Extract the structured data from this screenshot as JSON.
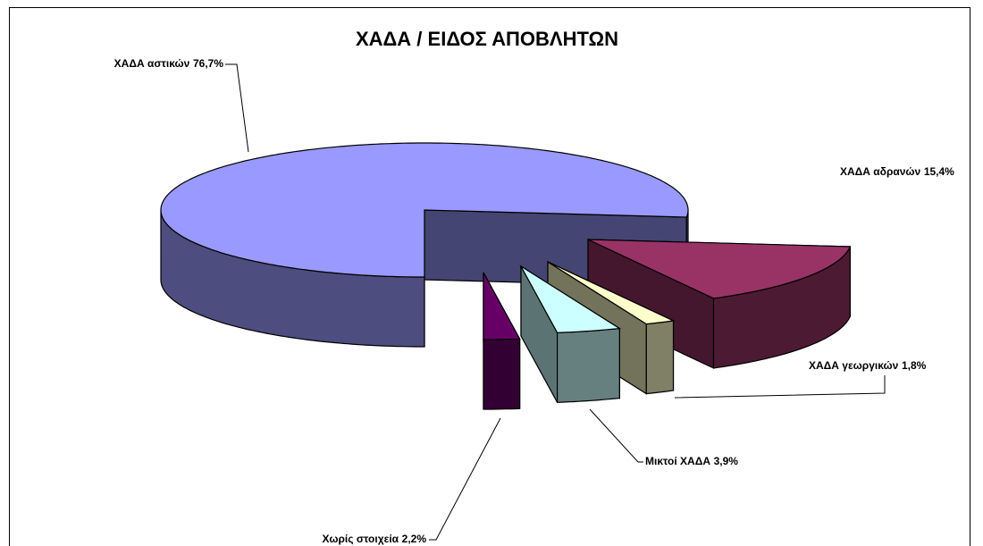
{
  "chart_data": {
    "type": "pie3d",
    "title": "ΧΑΔΑ / ΕΙΔΟΣ ΑΠΟΒΛΗΤΩΝ",
    "categories": [
      "ΧΑΔΑ αστικών",
      "ΧΑΔΑ αδρανών",
      "ΧΑΔΑ γεωργικών",
      "Μικτοί ΧΑΔΑ",
      "Χωρίς στοιχεία"
    ],
    "values": [
      76.7,
      15.4,
      1.8,
      3.9,
      2.2
    ],
    "value_labels": [
      "76,7%",
      "15,4%",
      "1,8%",
      "3,9%",
      "2,2%"
    ],
    "colors": [
      "#9999ff",
      "#993366",
      "#ffffcc",
      "#ccffff",
      "#660066"
    ]
  }
}
